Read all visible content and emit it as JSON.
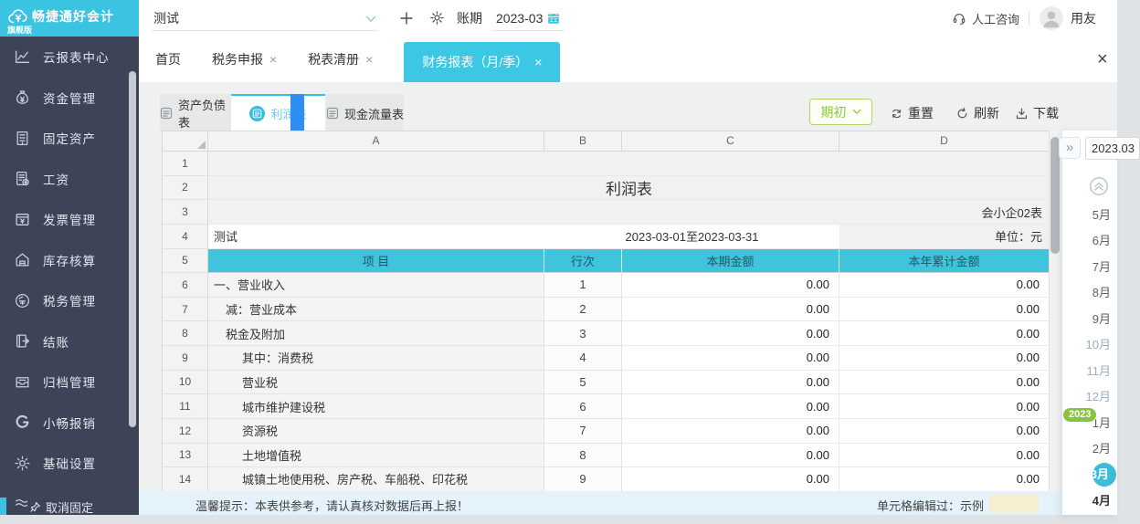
{
  "topbar": {
    "logo_title": "畅捷通好会计",
    "logo_subtitle": "旗舰版",
    "org_value": "测试",
    "period_label": "账期",
    "period_value": "2023-03",
    "help_label": "人工咨询",
    "user_name": "用友"
  },
  "sidebar": {
    "items": [
      {
        "label": "云报表中心",
        "icon": "chart"
      },
      {
        "label": "资金管理",
        "icon": "fund"
      },
      {
        "label": "固定资产",
        "icon": "asset"
      },
      {
        "label": "工资",
        "icon": "salary"
      },
      {
        "label": "发票管理",
        "icon": "invoice"
      },
      {
        "label": "库存核算",
        "icon": "inventory"
      },
      {
        "label": "税务管理",
        "icon": "tax"
      },
      {
        "label": "结账",
        "icon": "closing"
      },
      {
        "label": "归档管理",
        "icon": "archive"
      },
      {
        "label": "小畅报销",
        "icon": "reimburse"
      },
      {
        "label": "基础设置",
        "icon": "gear"
      },
      {
        "label": "",
        "icon": "guide"
      }
    ],
    "unpin_label": "取消固定"
  },
  "tabs": [
    {
      "label": "首页",
      "closable": false,
      "state": ""
    },
    {
      "label": "税务申报",
      "closable": true,
      "state": ""
    },
    {
      "label": "税表清册",
      "closable": true,
      "state": ""
    },
    {
      "label": "财务报表（月/季）",
      "closable": true,
      "state": "active"
    }
  ],
  "report_tabs": [
    {
      "label": "资产负债表",
      "icon": "doc",
      "state": ""
    },
    {
      "label": "利润表",
      "icon": "doc",
      "state": "active"
    },
    {
      "label": "现金流量表",
      "icon": "doc",
      "state": ""
    }
  ],
  "toolbar": {
    "period_button": "期初",
    "reset_label": "重置",
    "refresh_label": "刷新",
    "download_label": "下载"
  },
  "spreadsheet": {
    "columns": [
      "A",
      "B",
      "C",
      "D"
    ],
    "row_numbers": [
      "1",
      "2",
      "3",
      "4",
      "5"
    ],
    "title": "利润表",
    "form_code": "会小企02表",
    "company": "测试",
    "date_range": "2023-03-01至2023-03-31",
    "unit": "单位：元",
    "header": {
      "item": "项 目",
      "line": "行次",
      "current": "本期金额",
      "ytd": "本年累计金额"
    },
    "rows": [
      {
        "n": "6",
        "item": "一、营业收入",
        "line": "1",
        "cur": "0.00",
        "ytd": "0.00",
        "ind": "ind0"
      },
      {
        "n": "7",
        "item": "减：营业成本",
        "line": "2",
        "cur": "0.00",
        "ytd": "0.00",
        "ind": "ind1"
      },
      {
        "n": "8",
        "item": "税金及附加",
        "line": "3",
        "cur": "0.00",
        "ytd": "0.00",
        "ind": "ind1"
      },
      {
        "n": "9",
        "item": "其中：消费税",
        "line": "4",
        "cur": "0.00",
        "ytd": "0.00",
        "ind": "ind2"
      },
      {
        "n": "10",
        "item": "营业税",
        "line": "5",
        "cur": "0.00",
        "ytd": "0.00",
        "ind": "ind2"
      },
      {
        "n": "11",
        "item": "城市维护建设税",
        "line": "6",
        "cur": "0.00",
        "ytd": "0.00",
        "ind": "ind2"
      },
      {
        "n": "12",
        "item": "资源税",
        "line": "7",
        "cur": "0.00",
        "ytd": "0.00",
        "ind": "ind2"
      },
      {
        "n": "13",
        "item": "土地增值税",
        "line": "8",
        "cur": "0.00",
        "ytd": "0.00",
        "ind": "ind2"
      },
      {
        "n": "14",
        "item": "城镇土地使用税、房产税、车船税、印花税",
        "line": "9",
        "cur": "0.00",
        "ytd": "0.00",
        "ind": "ind2"
      }
    ]
  },
  "period_panel": {
    "current": "2023.03",
    "year_badge": "2023",
    "months": [
      {
        "label": "5月",
        "state": ""
      },
      {
        "label": "6月",
        "state": ""
      },
      {
        "label": "7月",
        "state": ""
      },
      {
        "label": "8月",
        "state": ""
      },
      {
        "label": "9月",
        "state": ""
      },
      {
        "label": "10月",
        "state": "muted"
      },
      {
        "label": "11月",
        "state": "muted"
      },
      {
        "label": "12月",
        "state": "muted"
      },
      {
        "label": "1月",
        "state": ""
      },
      {
        "label": "2月",
        "state": ""
      },
      {
        "label": "3月",
        "state": "selected"
      },
      {
        "label": "4月",
        "state": "strong"
      }
    ]
  },
  "footer": {
    "tip": "温馨提示：本表供参考，请认真核对数据后再上报！",
    "edited_label": "单元格编辑过：示例"
  },
  "icons_text": {
    "close": "×",
    "collapse": "»"
  }
}
